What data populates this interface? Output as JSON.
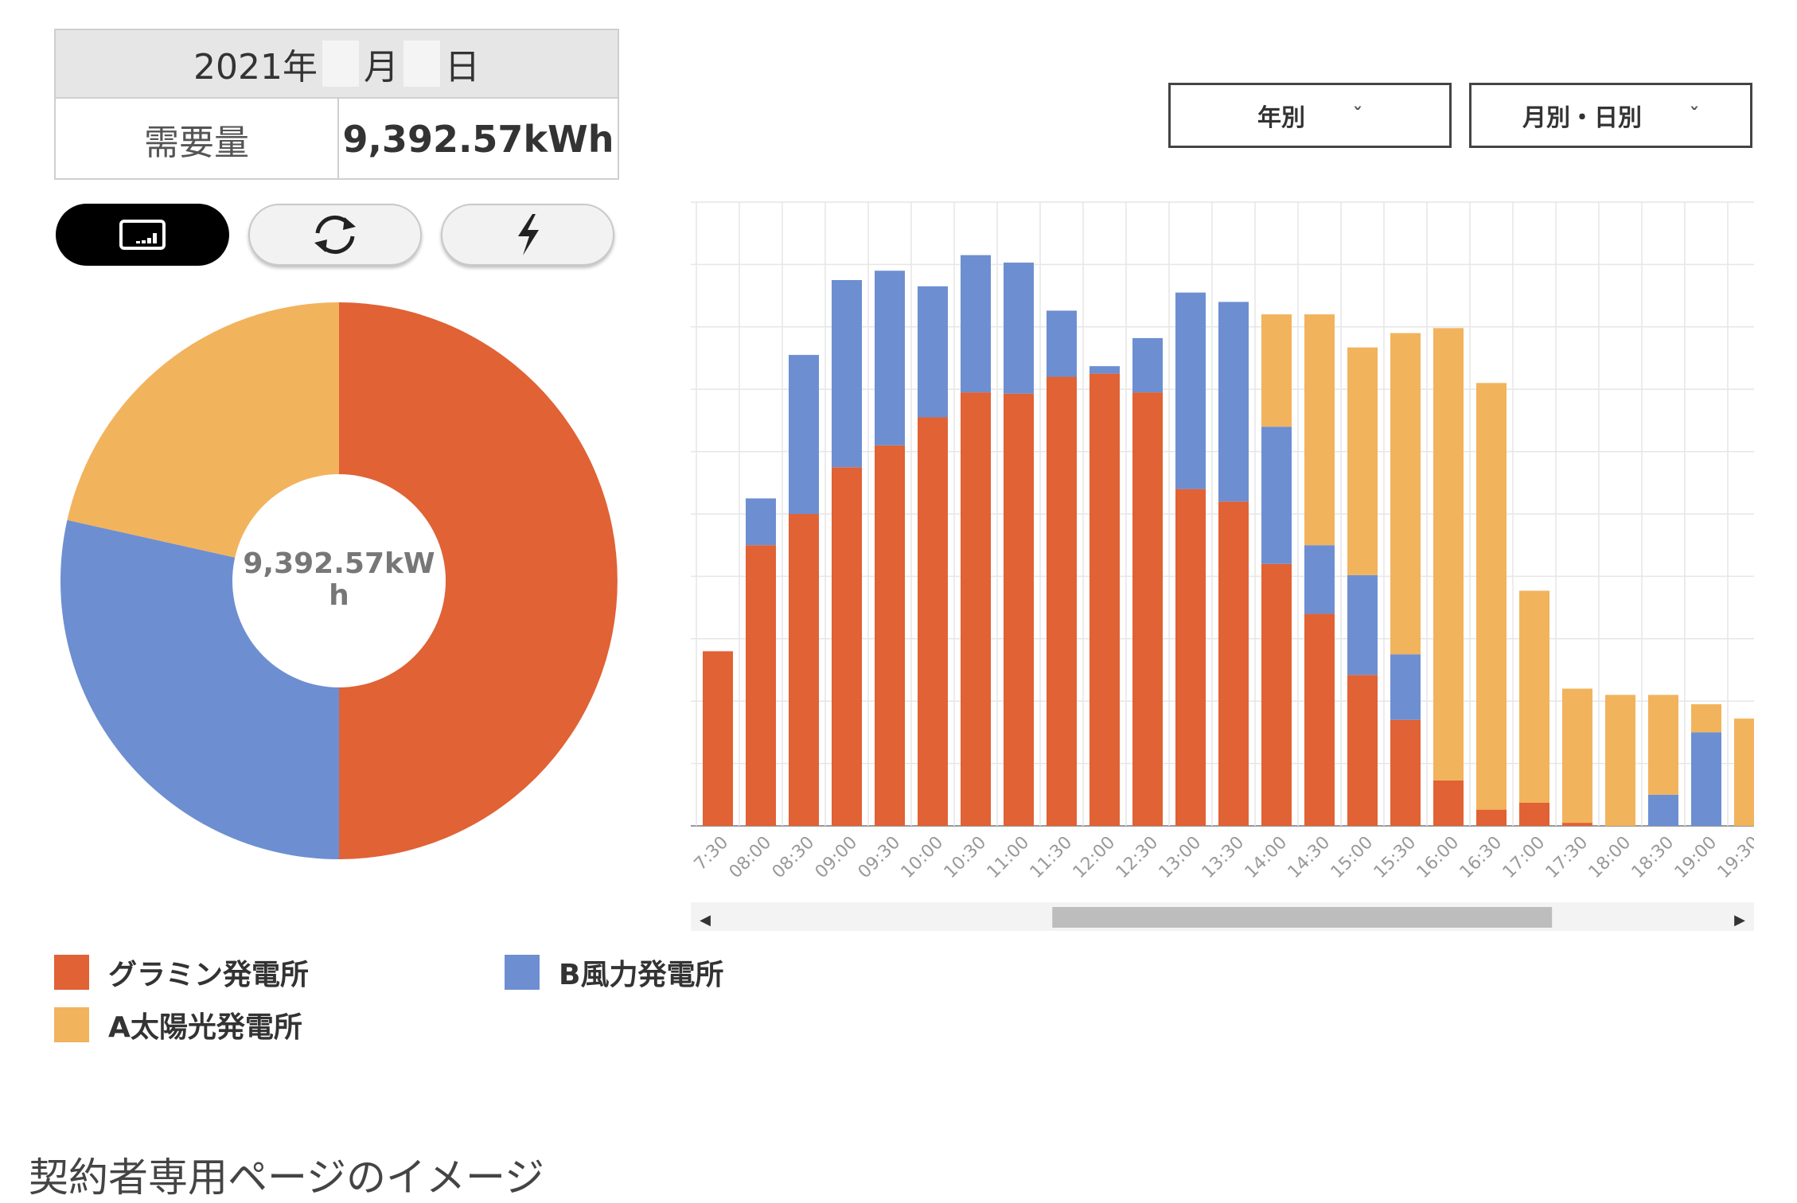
{
  "summary": {
    "year_label": "2021年",
    "month_label": "月",
    "day_label": "日",
    "demand_label": "需要量",
    "demand_value": "9,392.57kWh"
  },
  "toggles": [
    {
      "icon": "chart-grid-icon",
      "active": true
    },
    {
      "icon": "refresh-icon",
      "active": false
    },
    {
      "icon": "power-icon",
      "active": false
    }
  ],
  "dropdowns": {
    "period": "年別",
    "granularity": "月別・日別",
    "chevron": "ˇ"
  },
  "donut_center": {
    "line1": "9,392.57kW",
    "line2": "h"
  },
  "legend": [
    {
      "label": "グラミン発電所",
      "color": "#e06235"
    },
    {
      "label": "B風力発電所",
      "color": "#6d8fd1"
    },
    {
      "label": "A太陽光発電所",
      "color": "#f2b35d"
    }
  ],
  "caption": "契約者専用ページのイメージ",
  "colors": {
    "red": "#e06235",
    "blue": "#6d8fd1",
    "yellow": "#f2b35d"
  },
  "scroll": {
    "left_arrow": "◀",
    "right_arrow": "▶",
    "thumb_start": 0.34,
    "thumb_end": 0.81
  },
  "chart_data": [
    {
      "type": "pie",
      "donut": true,
      "series": [
        {
          "name": "グラミン発電所",
          "value": 50.0
        },
        {
          "name": "B風力発電所",
          "value": 28.5
        },
        {
          "name": "A太陽光発電所",
          "value": 21.5
        }
      ]
    },
    {
      "type": "bar",
      "stacked": true,
      "categories": [
        "7:30",
        "08:00",
        "08:30",
        "09:00",
        "09:30",
        "10:00",
        "10:30",
        "11:00",
        "11:30",
        "12:00",
        "12:30",
        "13:00",
        "13:30",
        "14:00",
        "14:30",
        "15:00",
        "15:30",
        "16:00",
        "16:30",
        "17:00",
        "17:30",
        "18:00",
        "18:30",
        "19:00",
        "19:30"
      ],
      "x_tick_labels": [
        "7:30",
        "08:00",
        "08:30",
        "09:00",
        "09:30",
        "10:00",
        "10:30",
        "11:00",
        "11:30",
        "12:00",
        "12:30",
        "13:00",
        "13:30",
        "14:00",
        "14:30",
        "15:00",
        "15:30",
        "16:00",
        "16:30",
        "17:00",
        "17:30",
        "18:00",
        "18:30",
        "19:00",
        "19:30"
      ],
      "ylim": [
        0,
        10
      ],
      "grid": true,
      "series": [
        {
          "name": "グラミン発電所",
          "values": [
            2.8,
            4.5,
            5.0,
            5.75,
            6.1,
            6.55,
            6.95,
            6.93,
            7.2,
            7.25,
            6.95,
            5.4,
            5.2,
            4.2,
            3.4,
            2.42,
            1.7,
            0.73,
            0.26,
            0.37,
            0.05,
            0,
            0,
            0,
            0
          ]
        },
        {
          "name": "B風力発電所",
          "values": [
            0,
            0.75,
            2.55,
            3.0,
            2.8,
            2.1,
            2.2,
            2.1,
            1.06,
            0.12,
            0.87,
            3.15,
            3.2,
            2.2,
            1.1,
            1.6,
            1.05,
            0,
            0,
            0,
            0,
            0,
            0.5,
            1.5,
            0
          ]
        },
        {
          "name": "A太陽光発電所",
          "values": [
            0,
            0,
            0,
            0,
            0,
            0,
            0,
            0,
            0,
            0,
            0,
            0,
            0,
            1.8,
            3.7,
            3.65,
            5.15,
            7.25,
            6.84,
            3.4,
            2.15,
            2.1,
            1.6,
            0.45,
            1.72
          ]
        }
      ]
    }
  ]
}
